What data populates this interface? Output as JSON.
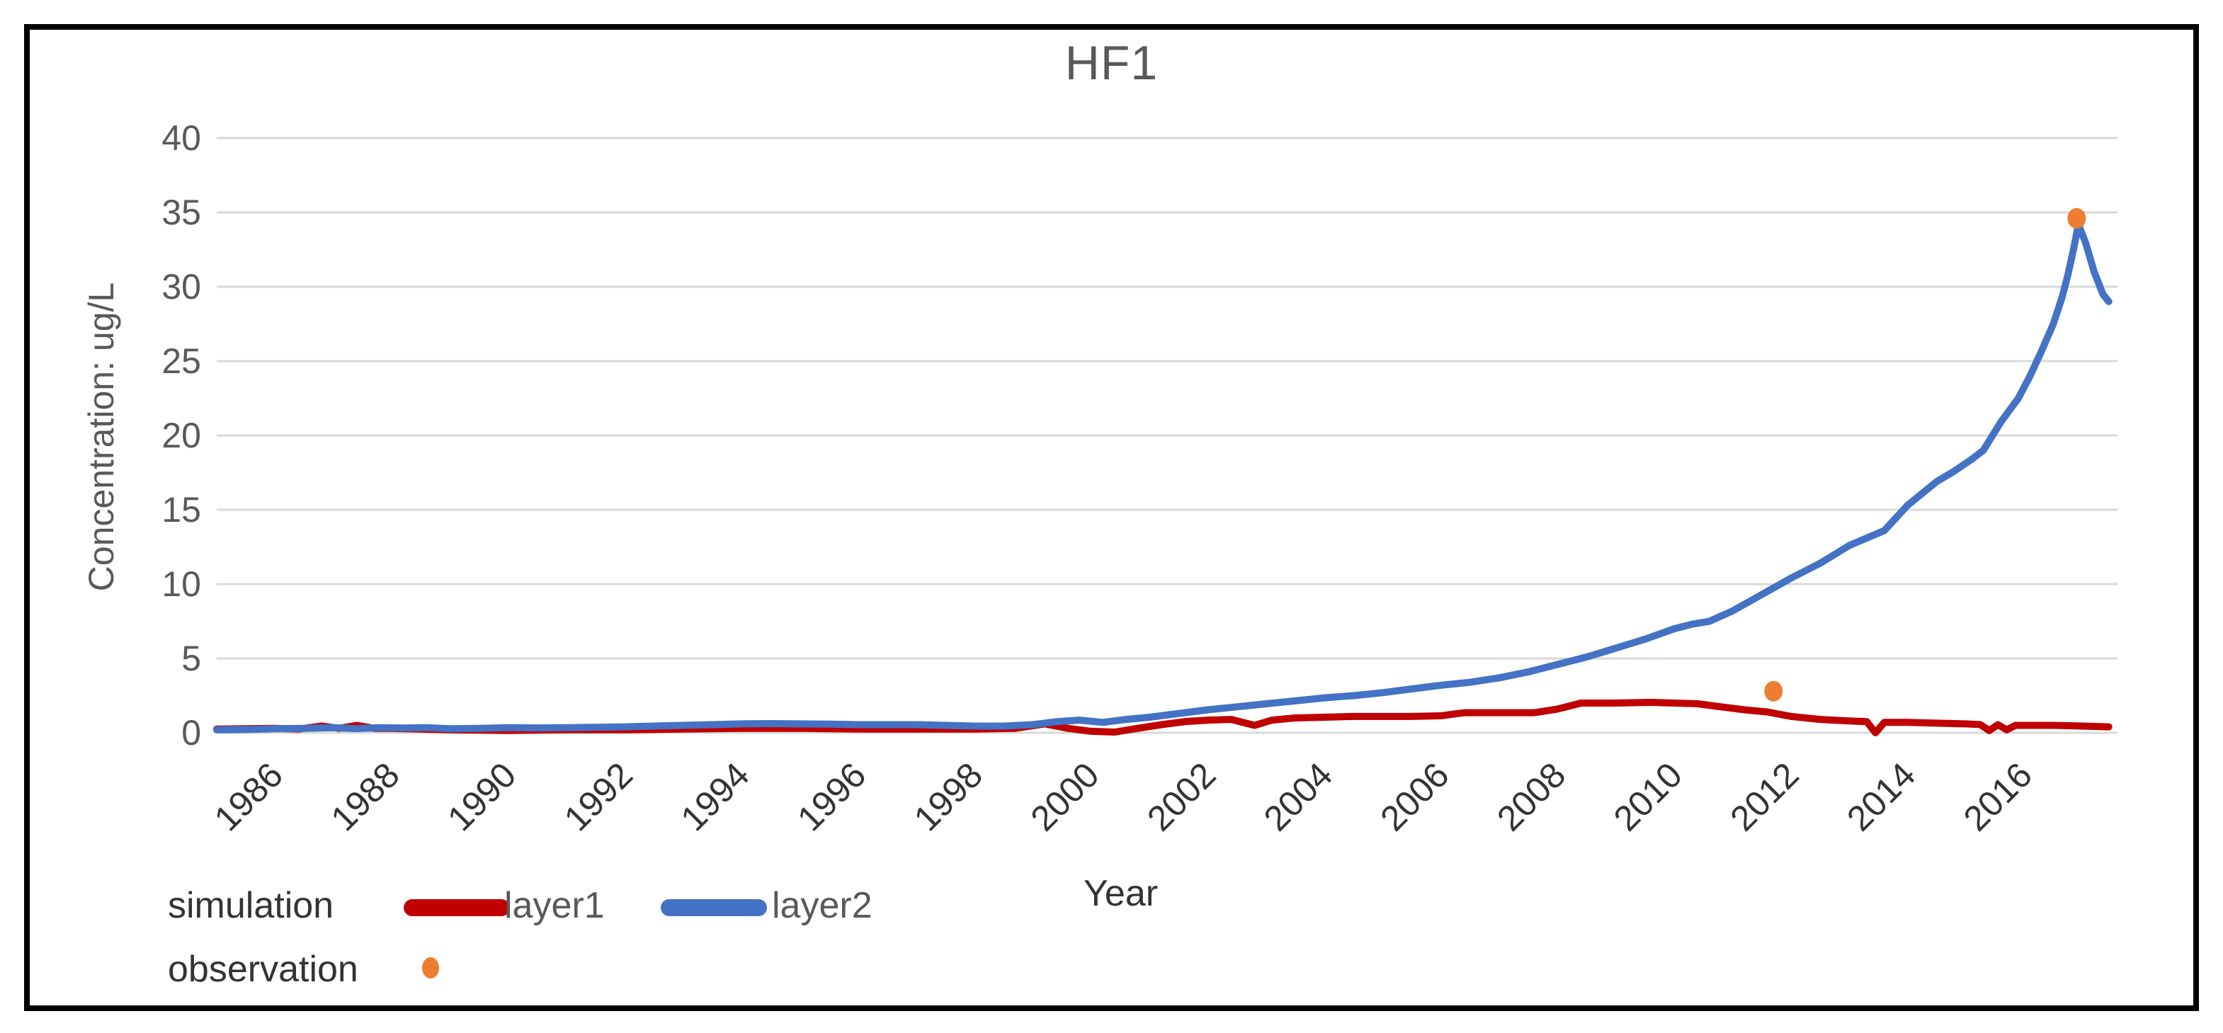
{
  "chart": {
    "title": "HF1",
    "x_axis_label": "Year",
    "y_axis_label": "Concentration: ug/L"
  },
  "legend": {
    "simulation_label": "simulation",
    "observation_label": "observation"
  },
  "chart_data": {
    "type": "line",
    "title": "HF1",
    "xlabel": "Year",
    "ylabel": "Concentration: ug/L",
    "xlim": [
      1985.0,
      2017.6
    ],
    "ylim": [
      0,
      40
    ],
    "x_ticks": [
      1986,
      1988,
      1990,
      1992,
      1994,
      1996,
      1998,
      2000,
      2002,
      2004,
      2006,
      2008,
      2010,
      2012,
      2014,
      2016
    ],
    "y_ticks": [
      0,
      5,
      10,
      15,
      20,
      25,
      30,
      35,
      40
    ],
    "grid": "horizontal-only",
    "legend_position": "bottom-left",
    "colors": {
      "layer1": "#C00000",
      "layer2": "#4472C4",
      "observation": "#ED7D31",
      "gridline": "#D9D9D9",
      "axis_text": "#595959",
      "tick_text": "#333333"
    },
    "series": [
      {
        "name": "layer1",
        "group": "simulation",
        "color": "#C00000",
        "points": [
          [
            1985.0,
            0.25
          ],
          [
            1985.5,
            0.27
          ],
          [
            1986,
            0.3
          ],
          [
            1986.4,
            0.25
          ],
          [
            1986.8,
            0.45
          ],
          [
            1987.1,
            0.3
          ],
          [
            1987.4,
            0.5
          ],
          [
            1987.7,
            0.3
          ],
          [
            1988,
            0.3
          ],
          [
            1988.5,
            0.25
          ],
          [
            1989,
            0.2
          ],
          [
            1989.5,
            0.18
          ],
          [
            1990,
            0.15
          ],
          [
            1990.5,
            0.18
          ],
          [
            1991,
            0.2
          ],
          [
            1992,
            0.2
          ],
          [
            1993,
            0.25
          ],
          [
            1994,
            0.3
          ],
          [
            1995,
            0.3
          ],
          [
            1996,
            0.25
          ],
          [
            1997,
            0.25
          ],
          [
            1998,
            0.25
          ],
          [
            1998.7,
            0.3
          ],
          [
            1999.2,
            0.6
          ],
          [
            1999.6,
            0.3
          ],
          [
            2000,
            0.1
          ],
          [
            2000.4,
            0.05
          ],
          [
            2000.8,
            0.3
          ],
          [
            2001.2,
            0.55
          ],
          [
            2001.6,
            0.75
          ],
          [
            2002,
            0.85
          ],
          [
            2002.4,
            0.9
          ],
          [
            2002.8,
            0.5
          ],
          [
            2003.1,
            0.85
          ],
          [
            2003.5,
            1.0
          ],
          [
            2004,
            1.05
          ],
          [
            2004.5,
            1.1
          ],
          [
            2005,
            1.1
          ],
          [
            2005.5,
            1.1
          ],
          [
            2006,
            1.15
          ],
          [
            2006.4,
            1.35
          ],
          [
            2007,
            1.35
          ],
          [
            2007.6,
            1.35
          ],
          [
            2008,
            1.6
          ],
          [
            2008.4,
            2.0
          ],
          [
            2009,
            2.0
          ],
          [
            2009.6,
            2.05
          ],
          [
            2010,
            2.0
          ],
          [
            2010.4,
            1.95
          ],
          [
            2010.8,
            1.75
          ],
          [
            2011.2,
            1.55
          ],
          [
            2011.6,
            1.4
          ],
          [
            2012,
            1.1
          ],
          [
            2012.5,
            0.9
          ],
          [
            2013,
            0.8
          ],
          [
            2013.3,
            0.75
          ],
          [
            2013.45,
            0.0
          ],
          [
            2013.6,
            0.7
          ],
          [
            2014,
            0.7
          ],
          [
            2014.5,
            0.65
          ],
          [
            2015,
            0.6
          ],
          [
            2015.25,
            0.55
          ],
          [
            2015.4,
            0.15
          ],
          [
            2015.55,
            0.55
          ],
          [
            2015.7,
            0.2
          ],
          [
            2015.85,
            0.5
          ],
          [
            2016,
            0.5
          ],
          [
            2016.5,
            0.5
          ],
          [
            2017,
            0.45
          ],
          [
            2017.45,
            0.4
          ]
        ]
      },
      {
        "name": "layer2",
        "group": "simulation",
        "color": "#4472C4",
        "points": [
          [
            1985.0,
            0.2
          ],
          [
            1985.5,
            0.22
          ],
          [
            1986,
            0.27
          ],
          [
            1986.5,
            0.3
          ],
          [
            1987,
            0.35
          ],
          [
            1987.4,
            0.28
          ],
          [
            1987.8,
            0.35
          ],
          [
            1988.2,
            0.32
          ],
          [
            1988.6,
            0.35
          ],
          [
            1989,
            0.27
          ],
          [
            1989.5,
            0.3
          ],
          [
            1990,
            0.35
          ],
          [
            1990.5,
            0.33
          ],
          [
            1991,
            0.35
          ],
          [
            1991.5,
            0.37
          ],
          [
            1992,
            0.4
          ],
          [
            1992.5,
            0.45
          ],
          [
            1993,
            0.5
          ],
          [
            1993.5,
            0.55
          ],
          [
            1994,
            0.6
          ],
          [
            1994.5,
            0.62
          ],
          [
            1995,
            0.6
          ],
          [
            1995.5,
            0.58
          ],
          [
            1996,
            0.55
          ],
          [
            1996.5,
            0.55
          ],
          [
            1997,
            0.55
          ],
          [
            1997.5,
            0.5
          ],
          [
            1998,
            0.45
          ],
          [
            1998.5,
            0.45
          ],
          [
            1999,
            0.55
          ],
          [
            1999.4,
            0.75
          ],
          [
            1999.8,
            0.85
          ],
          [
            2000.2,
            0.7
          ],
          [
            2000.6,
            0.9
          ],
          [
            2001,
            1.05
          ],
          [
            2001.5,
            1.3
          ],
          [
            2002,
            1.55
          ],
          [
            2002.5,
            1.75
          ],
          [
            2003,
            1.95
          ],
          [
            2003.5,
            2.15
          ],
          [
            2004,
            2.35
          ],
          [
            2004.5,
            2.5
          ],
          [
            2005,
            2.7
          ],
          [
            2005.5,
            2.95
          ],
          [
            2006,
            3.2
          ],
          [
            2006.5,
            3.4
          ],
          [
            2007,
            3.7
          ],
          [
            2007.5,
            4.1
          ],
          [
            2008,
            4.6
          ],
          [
            2008.5,
            5.1
          ],
          [
            2009,
            5.7
          ],
          [
            2009.5,
            6.3
          ],
          [
            2010,
            7.0
          ],
          [
            2010.3,
            7.3
          ],
          [
            2010.6,
            7.5
          ],
          [
            2011,
            8.2
          ],
          [
            2011.5,
            9.3
          ],
          [
            2012,
            10.4
          ],
          [
            2012.5,
            11.4
          ],
          [
            2013,
            12.6
          ],
          [
            2013.3,
            13.1
          ],
          [
            2013.6,
            13.6
          ],
          [
            2014,
            15.3
          ],
          [
            2014.5,
            16.9
          ],
          [
            2014.8,
            17.6
          ],
          [
            2015.1,
            18.4
          ],
          [
            2015.3,
            19.0
          ],
          [
            2015.6,
            20.9
          ],
          [
            2015.9,
            22.5
          ],
          [
            2016.1,
            24.0
          ],
          [
            2016.3,
            25.7
          ],
          [
            2016.5,
            27.5
          ],
          [
            2016.65,
            29.3
          ],
          [
            2016.75,
            30.8
          ],
          [
            2016.85,
            32.6
          ],
          [
            2016.93,
            34.2
          ],
          [
            2017.05,
            33.0
          ],
          [
            2017.2,
            31.0
          ],
          [
            2017.35,
            29.5
          ],
          [
            2017.45,
            29.0
          ]
        ]
      }
    ],
    "observations": {
      "name": "observation",
      "color": "#ED7D31",
      "points": [
        [
          2011.7,
          2.8
        ],
        [
          2016.9,
          34.6
        ]
      ]
    }
  }
}
